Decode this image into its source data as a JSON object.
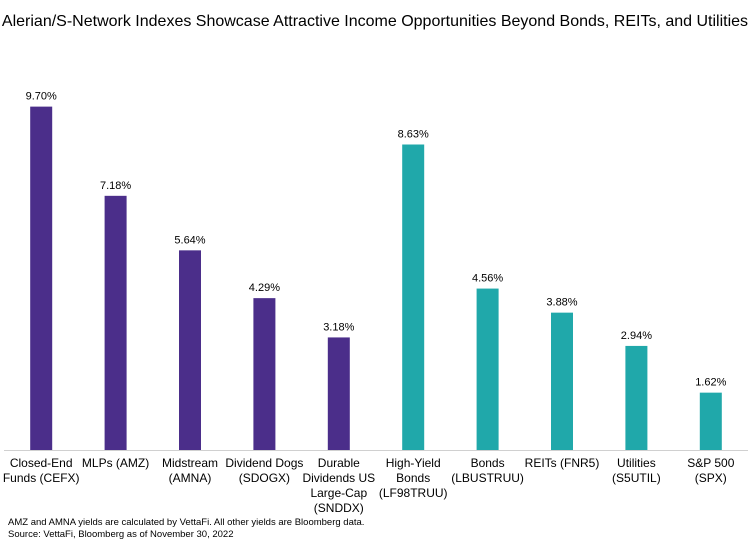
{
  "chart_data": {
    "type": "bar",
    "title": "Alerian/S-Network Indexes Showcase Attractive Income Opportunities Beyond Bonds, REITs, and Utilities",
    "xlabel": "",
    "ylabel": "",
    "ylim": [
      0,
      10
    ],
    "grid": false,
    "categories": [
      "Closed-End Funds (CEFX)",
      "MLPs (AMZ)",
      "Midstream (AMNA)",
      "Dividend Dogs (SDOGX)",
      "Durable Dividends US Large-Cap (SNDDX)",
      "High-Yield Bonds (LF98TRUU)",
      "Bonds (LBUSTRUU)",
      "REITs (FNR5)",
      "Utilities (S5UTIL)",
      "S&P 500 (SPX)"
    ],
    "values": [
      9.7,
      7.18,
      5.64,
      4.29,
      3.18,
      8.63,
      4.56,
      3.88,
      2.94,
      1.62
    ],
    "data_labels": [
      "9.70%",
      "7.18%",
      "5.64%",
      "4.29%",
      "3.18%",
      "8.63%",
      "4.56%",
      "3.88%",
      "2.94%",
      "1.62%"
    ],
    "bar_colors": [
      "#4B2E8A",
      "#4B2E8A",
      "#4B2E8A",
      "#4B2E8A",
      "#4B2E8A",
      "#20A8AA",
      "#20A8AA",
      "#20A8AA",
      "#20A8AA",
      "#20A8AA"
    ]
  },
  "footnotes": {
    "note": "AMZ and AMNA yields are calculated by VettaFi. All other yields are Bloomberg data.",
    "source": "Source: VettaFi, Bloomberg as of November 30, 2022"
  }
}
